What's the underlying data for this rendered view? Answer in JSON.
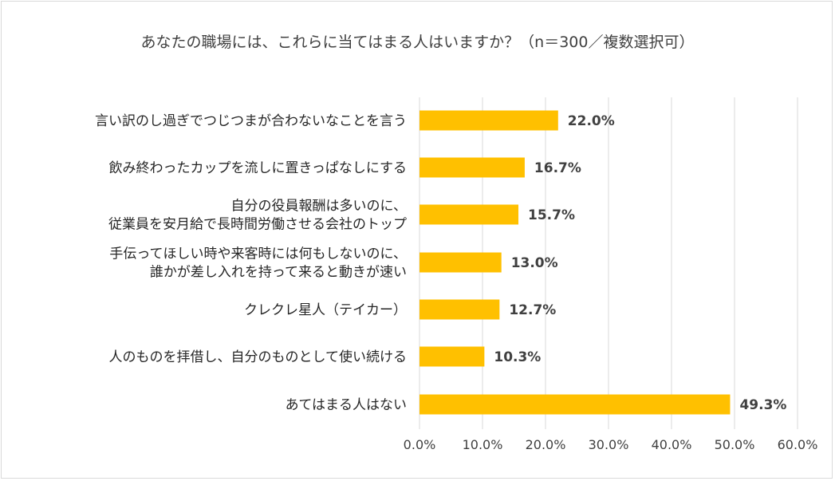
{
  "chart_data": {
    "type": "bar",
    "orientation": "horizontal",
    "title": "あなたの職場には、これらに当てはまる人はいますか？（n＝300／複数選択可）",
    "categories": [
      [
        "言い訳のし過ぎでつじつまが合わないなことを言う"
      ],
      [
        "飲み終わったカップを流しに置きっぱなしにする"
      ],
      [
        "自分の役員報酬は多いのに、",
        "従業員を安月給で長時間労働させる会社のトップ"
      ],
      [
        "手伝ってほしい時や来客時には何もしないのに、",
        "誰かが差し入れを持って来ると動きが速い"
      ],
      [
        "クレクレ星人（テイカー）"
      ],
      [
        "人のものを拝借し、自分のものとして使い続ける"
      ],
      [
        "あてはまる人はない"
      ]
    ],
    "values": [
      22.0,
      16.7,
      15.7,
      13.0,
      12.7,
      10.3,
      49.3
    ],
    "value_labels": [
      "22.0%",
      "16.7%",
      "15.7%",
      "13.0%",
      "12.7%",
      "10.3%",
      "49.3%"
    ],
    "xlim": [
      0,
      60
    ],
    "xticks": [
      0,
      10,
      20,
      30,
      40,
      50,
      60
    ],
    "xtick_labels": [
      "0.0%",
      "10.0%",
      "20.0%",
      "30.0%",
      "40.0%",
      "50.0%",
      "60.0%"
    ],
    "xlabel": "",
    "ylabel": "",
    "grid": true,
    "colors": {
      "bar": "#FFC000",
      "grid": "#d9d9d9"
    }
  }
}
